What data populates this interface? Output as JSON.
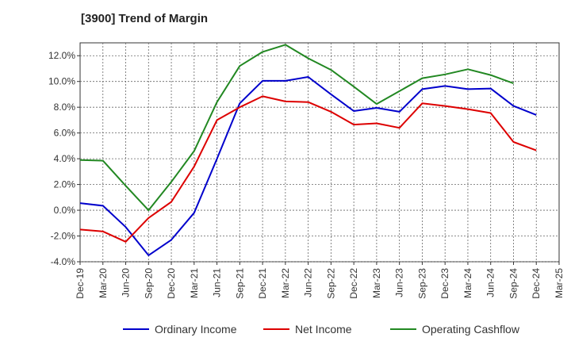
{
  "chart_data": {
    "type": "line",
    "title": "[3900]  Trend of Margin",
    "x": [
      "Dec-19",
      "Mar-20",
      "Jun-20",
      "Sep-20",
      "Dec-20",
      "Mar-21",
      "Jun-21",
      "Sep-21",
      "Dec-21",
      "Mar-22",
      "Jun-22",
      "Sep-22",
      "Dec-22",
      "Mar-23",
      "Jun-23",
      "Sep-23",
      "Dec-23",
      "Mar-24",
      "Jun-24",
      "Sep-24",
      "Dec-24",
      "Mar-25"
    ],
    "ylim": [
      -4.0,
      13.0
    ],
    "yticks": [
      -4.0,
      -2.0,
      0.0,
      2.0,
      4.0,
      6.0,
      8.0,
      10.0,
      12.0
    ],
    "ytick_labels": [
      "-4.0%",
      "-2.0%",
      "0.0%",
      "2.0%",
      "4.0%",
      "6.0%",
      "8.0%",
      "10.0%",
      "12.0%"
    ],
    "grid": true,
    "legend_position": "bottom",
    "series": [
      {
        "name": "Ordinary Income",
        "color": "#0000cc",
        "values": [
          0.55,
          0.35,
          -1.3,
          -3.5,
          -2.3,
          -0.2,
          4.0,
          8.3,
          10.05,
          10.05,
          10.35,
          9.0,
          7.7,
          7.95,
          7.65,
          9.4,
          9.65,
          9.4,
          9.45,
          8.1,
          7.4,
          null
        ]
      },
      {
        "name": "Net Income",
        "color": "#dd0000",
        "values": [
          -1.5,
          -1.65,
          -2.45,
          -0.6,
          0.65,
          3.4,
          7.0,
          8.0,
          8.85,
          8.45,
          8.4,
          7.65,
          6.65,
          6.75,
          6.4,
          8.3,
          8.1,
          7.85,
          7.55,
          5.3,
          4.65,
          null
        ]
      },
      {
        "name": "Operating Cashflow",
        "color": "#228822",
        "values": [
          3.9,
          3.85,
          1.9,
          0.0,
          2.2,
          4.6,
          8.4,
          11.2,
          12.3,
          12.85,
          11.8,
          10.9,
          9.6,
          8.25,
          9.25,
          10.25,
          10.55,
          10.95,
          10.5,
          9.85,
          null,
          null
        ]
      }
    ]
  }
}
